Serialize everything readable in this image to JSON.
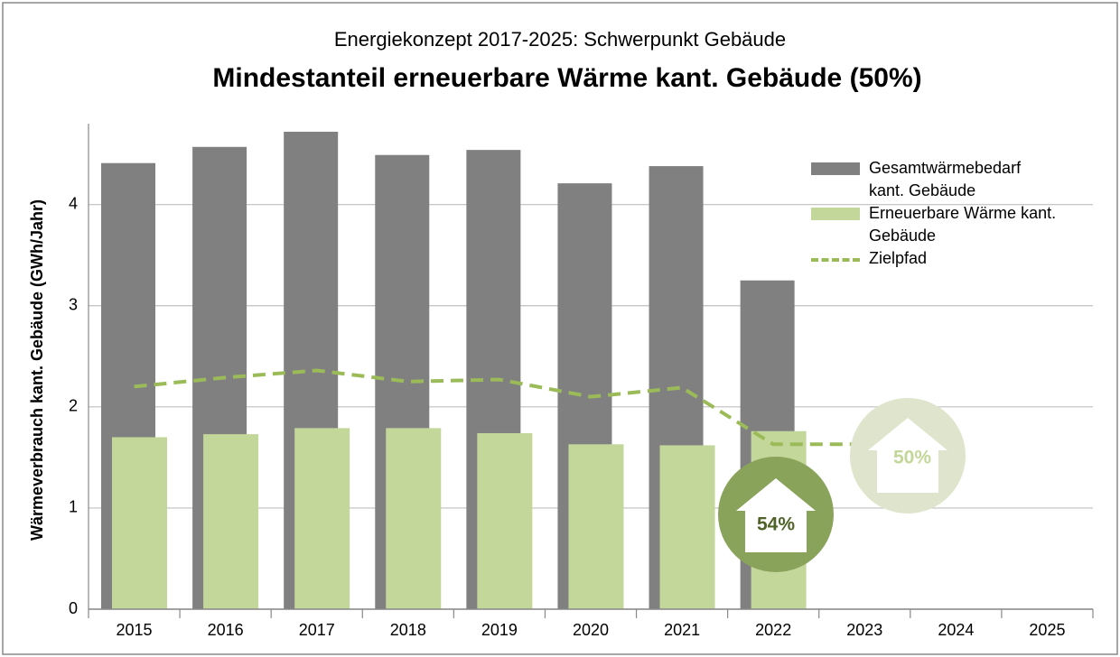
{
  "chart_data": {
    "type": "bar",
    "subtitle": "Energiekonzept 2017-2025: Schwerpunkt Gebäude",
    "title": "Mindestanteil erneuerbare Wärme kant. Gebäude (50%)",
    "y_label": "Wärmeverbrauch kant. Gebäude (GWh/Jahr)",
    "categories": [
      "2015",
      "2016",
      "2017",
      "2018",
      "2019",
      "2020",
      "2021",
      "2022",
      "2023",
      "2024",
      "2025"
    ],
    "series": [
      {
        "name": "Gesamtwärmebedarf kant. Gebäude",
        "color": "#808080",
        "type": "bar",
        "values": [
          4.41,
          4.57,
          4.72,
          4.49,
          4.54,
          4.21,
          4.38,
          3.25,
          null,
          null,
          null
        ]
      },
      {
        "name": "Erneuerbare Wärme kant. Gebäude",
        "color": "#c4d79b",
        "type": "bar",
        "values": [
          1.7,
          1.73,
          1.79,
          1.79,
          1.74,
          1.63,
          1.62,
          1.76,
          null,
          null,
          null
        ]
      },
      {
        "name": "Zielpfad",
        "color": "#9bbb59",
        "type": "line",
        "dashed": true,
        "values": [
          2.2,
          2.29,
          2.36,
          2.25,
          2.27,
          2.1,
          2.19,
          1.63,
          1.63,
          null,
          null
        ]
      }
    ],
    "annotations": [
      "54%",
      "50%"
    ],
    "ylim": [
      0,
      4.8
    ],
    "yticks": [
      0,
      1,
      2,
      3,
      4
    ],
    "grid": true,
    "legend": "top-right"
  }
}
